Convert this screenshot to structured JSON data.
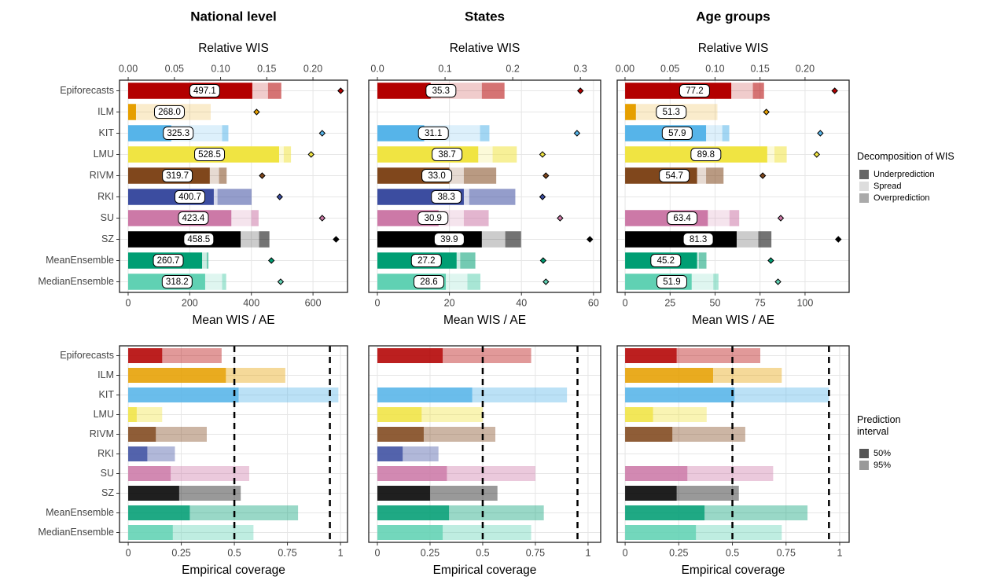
{
  "chart_data": [
    {
      "type": "bar",
      "stacked": true,
      "grid": true,
      "title": "National level",
      "x_label": "Mean WIS / AE",
      "x2_label": "Relative WIS",
      "categories": [
        "Epiforecasts",
        "ILM",
        "KIT",
        "LMU",
        "RIVM",
        "RKI",
        "SU",
        "SZ",
        "MeanEnsemble",
        "MedianEnsemble"
      ],
      "category_colors": [
        "#B30000",
        "#E69F00",
        "#56B4E9",
        "#F0E442",
        "#80471C",
        "#3C4DA0",
        "#CC79A7",
        "#000000",
        "#009E73",
        "#60D1B3"
      ],
      "series": [
        {
          "alpha": 1,
          "values": [
            403,
            25.5,
            140,
            490,
            265,
            278,
            335,
            365,
            240,
            250
          ]
        },
        {
          "alpha": 0.2,
          "values": [
            51,
            242.5,
            165,
            15,
            30,
            12,
            65,
            60,
            15,
            55
          ]
        },
        {
          "alpha": 0.55,
          "values": [
            43.1,
            0,
            20.3,
            23.5,
            24.7,
            110.7,
            23.4,
            33.5,
            5.7,
            13.2
          ]
        }
      ],
      "totals": {
        "values": [
          497.1,
          268,
          325.3,
          528.5,
          319.7,
          400.7,
          423.4,
          458.5,
          260.7,
          318.2
        ],
        "value_labels": [
          "497.1",
          "268.0",
          "325.3",
          "528.5",
          "319.7",
          "400.7",
          "423.4",
          "458.5",
          "260.7",
          "318.2"
        ]
      },
      "relative_wis": [
        0.23,
        0.139,
        0.21,
        0.198,
        0.145,
        0.164,
        0.21,
        0.225,
        0.155,
        0.165
      ],
      "xlim": [
        -28,
        712
      ],
      "xticks": [
        0,
        200,
        400,
        600
      ],
      "x2lim": [
        -0.0094,
        0.2374
      ],
      "x2ticks": [
        {
          "value": 0,
          "label": "0.00"
        },
        {
          "value": 0.05,
          "label": "0.05"
        },
        {
          "value": 0.1,
          "label": "0.10"
        },
        {
          "value": 0.15,
          "label": "0.15"
        },
        {
          "value": 0.2,
          "label": "0.20"
        }
      ]
    },
    {
      "type": "bar",
      "stacked": true,
      "grid": true,
      "title": "States",
      "x_label": "Mean WIS / AE",
      "x2_label": "Relative WIS",
      "category_colors": [
        "#B30000",
        "#E69F00",
        "#56B4E9",
        "#F0E442",
        "#80471C",
        "#3C4DA0",
        "#CC79A7",
        "#000000",
        "#009E73",
        "#60D1B3"
      ],
      "series": [
        {
          "alpha": 1,
          "values": [
            14.8,
            null,
            13,
            28,
            20,
            24,
            17,
            29,
            22,
            19
          ]
        },
        {
          "alpha": 0.2,
          "values": [
            14.2,
            null,
            15.5,
            4,
            4,
            1.5,
            7,
            6.5,
            1,
            6
          ]
        },
        {
          "alpha": 0.55,
          "values": [
            6.3,
            null,
            2.6,
            6.7,
            9.0,
            12.8,
            6.9,
            4.4,
            4.2,
            3.6
          ]
        }
      ],
      "totals": {
        "values": [
          35.3,
          null,
          31.1,
          38.7,
          33.0,
          38.3,
          30.9,
          39.9,
          27.2,
          28.6
        ],
        "value_labels": [
          "35.3",
          null,
          "31.1",
          "38.7",
          "33.0",
          "38.3",
          "30.9",
          "39.9",
          "27.2",
          "28.6"
        ]
      },
      "relative_wis": [
        0.3,
        null,
        0.295,
        0.244,
        0.249,
        0.244,
        0.27,
        0.314,
        0.245,
        0.249
      ],
      "xlim": [
        -2.4,
        62
      ],
      "xticks": [
        0,
        20,
        40,
        60
      ],
      "x2lim": [
        -0.0128,
        0.33
      ],
      "x2ticks": [
        {
          "value": 0,
          "label": "0.0"
        },
        0.1,
        0.2,
        0.3
      ]
    },
    {
      "type": "bar",
      "stacked": true,
      "grid": true,
      "title": "Age groups",
      "x_label": "Mean WIS / AE",
      "x2_label": "Relative WIS",
      "category_colors": [
        "#B30000",
        "#E69F00",
        "#56B4E9",
        "#F0E442",
        "#80471C",
        "#3C4DA0",
        "#CC79A7",
        "#000000",
        "#009E73",
        "#60D1B3"
      ],
      "legend_title": "Decomposition of WIS",
      "series": [
        {
          "name": "Underprediction",
          "color": "#666666",
          "alpha": 1,
          "values": [
            59,
            6,
            45,
            79,
            40,
            null,
            46,
            62,
            40,
            37
          ]
        },
        {
          "name": "Spread",
          "color": "#dddddd",
          "alpha": 0.2,
          "values": [
            12,
            45.3,
            9,
            4,
            5,
            null,
            12,
            12,
            1,
            12
          ]
        },
        {
          "name": "Overprediction",
          "color": "#aaaaaa",
          "alpha": 0.55,
          "values": [
            6.2,
            0,
            3.9,
            6.8,
            9.7,
            null,
            5.4,
            7.3,
            4.2,
            2.9
          ]
        }
      ],
      "totals": {
        "values": [
          77.2,
          51.3,
          57.9,
          89.8,
          54.7,
          null,
          63.4,
          81.3,
          45.2,
          51.9
        ],
        "value_labels": [
          "77.2",
          "51.3",
          "57.9",
          "89.8",
          "54.7",
          null,
          "63.4",
          "81.3",
          "45.2",
          "51.9"
        ]
      },
      "relative_wis": [
        0.233,
        0.157,
        0.217,
        0.213,
        0.153,
        null,
        0.173,
        0.237,
        0.162,
        0.17
      ],
      "xlim": [
        -4.4,
        124.5
      ],
      "xticks": [
        0,
        25,
        50,
        75,
        100
      ],
      "x2lim": [
        -0.0087,
        0.249
      ],
      "x2ticks": [
        {
          "value": 0,
          "label": "0.00"
        },
        {
          "value": 0.05,
          "label": "0.05"
        },
        {
          "value": 0.1,
          "label": "0.10"
        },
        {
          "value": 0.15,
          "label": "0.15"
        },
        {
          "value": 0.2,
          "label": "0.20"
        }
      ]
    },
    {
      "type": "bar",
      "stacked": false,
      "grid": true,
      "x_label": "Empirical coverage",
      "categories": [
        "Epiforecasts",
        "ILM",
        "KIT",
        "LMU",
        "RIVM",
        "RKI",
        "SU",
        "SZ",
        "MeanEnsemble",
        "MedianEnsemble"
      ],
      "category_colors": [
        "#B30000",
        "#E69F00",
        "#56B4E9",
        "#F0E442",
        "#80471C",
        "#3C4DA0",
        "#CC79A7",
        "#000000",
        "#009E73",
        "#60D1B3"
      ],
      "series": [
        {
          "alpha": 0.8,
          "values": [
            0.16,
            0.46,
            0.52,
            0.04,
            0.13,
            0.09,
            0.2,
            0.24,
            0.29,
            0.21
          ]
        },
        {
          "alpha": 0.4,
          "values": [
            0.44,
            0.74,
            0.99,
            0.16,
            0.37,
            0.22,
            0.57,
            0.53,
            0.8,
            0.59
          ]
        }
      ],
      "reference_lines": [
        0.5,
        0.95
      ],
      "xlim": [
        -0.041,
        1.033
      ],
      "xticks": [
        0,
        0.25,
        0.5,
        0.75,
        1
      ]
    },
    {
      "type": "bar",
      "stacked": false,
      "grid": true,
      "x_label": "Empirical coverage",
      "category_colors": [
        "#B30000",
        "#E69F00",
        "#56B4E9",
        "#F0E442",
        "#80471C",
        "#3C4DA0",
        "#CC79A7",
        "#000000",
        "#009E73",
        "#60D1B3"
      ],
      "series": [
        {
          "alpha": 0.8,
          "values": [
            0.31,
            null,
            0.45,
            0.21,
            0.22,
            0.12,
            0.33,
            0.25,
            0.34,
            0.31
          ]
        },
        {
          "alpha": 0.4,
          "values": [
            0.73,
            null,
            0.9,
            0.5,
            0.56,
            0.29,
            0.75,
            0.57,
            0.79,
            0.73
          ]
        }
      ],
      "reference_lines": [
        0.5,
        0.95
      ],
      "xlim": [
        -0.041,
        1.06
      ],
      "xticks": [
        0,
        0.25,
        0.5,
        0.75,
        1
      ]
    },
    {
      "type": "bar",
      "stacked": false,
      "grid": true,
      "x_label": "Empirical coverage",
      "category_colors": [
        "#B30000",
        "#E69F00",
        "#56B4E9",
        "#F0E442",
        "#80471C",
        "#3C4DA0",
        "#CC79A7",
        "#000000",
        "#009E73",
        "#60D1B3"
      ],
      "legend_title": "Prediction interval",
      "series": [
        {
          "name": "50%",
          "color": "#555555",
          "alpha": 0.8,
          "values": [
            0.24,
            0.41,
            0.51,
            0.13,
            0.22,
            null,
            0.29,
            0.24,
            0.37,
            0.33
          ]
        },
        {
          "name": "95%",
          "color": "#999999",
          "alpha": 0.4,
          "values": [
            0.63,
            0.73,
            0.95,
            0.38,
            0.56,
            null,
            0.69,
            0.53,
            0.85,
            0.73
          ]
        }
      ],
      "reference_lines": [
        0.5,
        0.95
      ],
      "xlim": [
        -0.037,
        1.044
      ],
      "xticks": [
        0,
        0.25,
        0.5,
        0.75,
        1
      ]
    }
  ]
}
